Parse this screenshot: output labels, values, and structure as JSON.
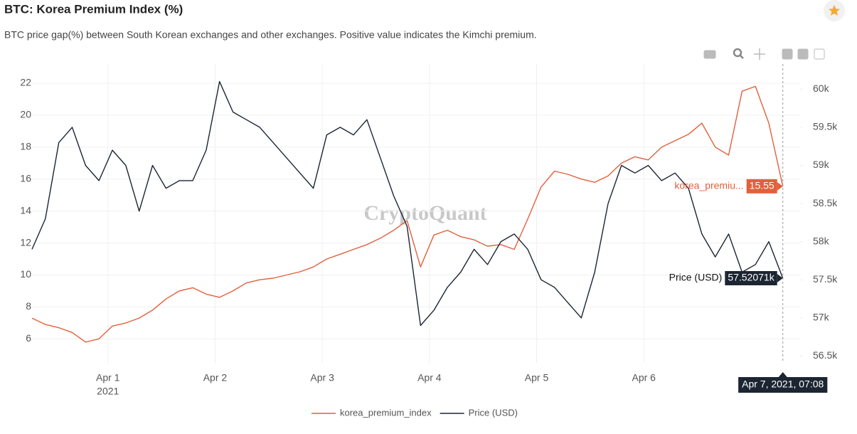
{
  "chart_data": {
    "type": "line",
    "title": "BTC: Korea Premium Index (%)",
    "subtitle": "BTC price gap(%) between South Korean exchanges and other exchanges. Positive value indicates the Kimchi premium.",
    "watermark": "CryptoQuant",
    "x": [
      "2021-03-31T07:00",
      "2021-03-31T10:00",
      "2021-03-31T13:00",
      "2021-03-31T16:00",
      "2021-03-31T19:00",
      "2021-03-31T22:00",
      "2021-04-01T01:00",
      "2021-04-01T04:00",
      "2021-04-01T07:00",
      "2021-04-01T10:00",
      "2021-04-01T13:00",
      "2021-04-01T16:00",
      "2021-04-01T19:00",
      "2021-04-01T22:00",
      "2021-04-02T01:00",
      "2021-04-02T04:00",
      "2021-04-02T07:00",
      "2021-04-02T10:00",
      "2021-04-02T13:00",
      "2021-04-02T16:00",
      "2021-04-02T19:00",
      "2021-04-02T22:00",
      "2021-04-03T01:00",
      "2021-04-03T04:00",
      "2021-04-03T07:00",
      "2021-04-03T10:00",
      "2021-04-03T13:00",
      "2021-04-03T16:00",
      "2021-04-03T19:00",
      "2021-04-03T22:00",
      "2021-04-04T01:00",
      "2021-04-04T04:00",
      "2021-04-04T07:00",
      "2021-04-04T10:00",
      "2021-04-04T13:00",
      "2021-04-04T16:00",
      "2021-04-04T19:00",
      "2021-04-04T22:00",
      "2021-04-05T01:00",
      "2021-04-05T04:00",
      "2021-04-05T07:00",
      "2021-04-05T10:00",
      "2021-04-05T13:00",
      "2021-04-05T16:00",
      "2021-04-05T19:00",
      "2021-04-05T22:00",
      "2021-04-06T01:00",
      "2021-04-06T04:00",
      "2021-04-06T07:00",
      "2021-04-06T10:00",
      "2021-04-06T13:00",
      "2021-04-06T16:00",
      "2021-04-06T19:00",
      "2021-04-06T22:00",
      "2021-04-07T01:00",
      "2021-04-07T04:00",
      "2021-04-07T07:08"
    ],
    "xlim": [
      "2021-03-31T07:00",
      "2021-04-07T11:00"
    ],
    "xticks": [
      {
        "value": "2021-04-01T00:00",
        "label": "Apr 1"
      },
      {
        "value": "2021-04-02T00:00",
        "label": "Apr 2"
      },
      {
        "value": "2021-04-03T00:00",
        "label": "Apr 3"
      },
      {
        "value": "2021-04-04T00:00",
        "label": "Apr 4"
      },
      {
        "value": "2021-04-05T00:00",
        "label": "Apr 5"
      },
      {
        "value": "2021-04-06T00:00",
        "label": "Apr 6"
      }
    ],
    "x_year_label": "2021",
    "ylim": [
      4.5,
      23.2
    ],
    "yticks": [
      6,
      8,
      10,
      12,
      14,
      16,
      18,
      20,
      22
    ],
    "y2lim": [
      56410,
      60330
    ],
    "y2ticks": [
      {
        "value": 56500,
        "label": "56.5k"
      },
      {
        "value": 57000,
        "label": "57k"
      },
      {
        "value": 57500,
        "label": "57.5k"
      },
      {
        "value": 58000,
        "label": "58k"
      },
      {
        "value": 58500,
        "label": "58.5k"
      },
      {
        "value": 59000,
        "label": "59k"
      },
      {
        "value": 59500,
        "label": "59.5k"
      },
      {
        "value": 60000,
        "label": "60k"
      }
    ],
    "grid": true,
    "legend": "bottom",
    "series": [
      {
        "name": "korea_premium_index",
        "color": "#e2603c",
        "values": [
          7.3,
          6.9,
          6.7,
          6.4,
          5.8,
          6.0,
          6.8,
          7.0,
          7.3,
          7.8,
          8.5,
          9.0,
          9.2,
          8.8,
          8.6,
          9.0,
          9.5,
          9.7,
          9.8,
          10.0,
          10.2,
          10.5,
          11.0,
          11.3,
          11.6,
          11.9,
          12.3,
          12.8,
          13.4,
          10.5,
          12.5,
          12.8,
          12.4,
          12.2,
          11.8,
          11.9,
          11.6,
          13.5,
          15.5,
          16.5,
          16.3,
          16.0,
          15.8,
          16.2,
          17.0,
          17.4,
          17.2,
          18.0,
          18.4,
          18.8,
          19.5,
          18.0,
          17.5,
          21.5,
          21.8,
          19.5,
          15.55
        ]
      },
      {
        "name": "Price (USD)",
        "color": "#1c2532",
        "axis": "y2",
        "values": [
          57900,
          58300,
          59300,
          59500,
          59000,
          58800,
          59200,
          59000,
          58400,
          59000,
          58700,
          58800,
          58800,
          59200,
          60100,
          59700,
          59600,
          59500,
          59300,
          59100,
          58900,
          58700,
          59400,
          59500,
          59400,
          59600,
          59100,
          58600,
          58200,
          56900,
          57100,
          57400,
          57600,
          57900,
          57700,
          58000,
          58100,
          57900,
          57500,
          57400,
          57200,
          57000,
          57600,
          58500,
          59000,
          58900,
          59000,
          58800,
          58900,
          58700,
          58100,
          57800,
          58100,
          57600,
          57700,
          58000,
          57520.71
        ],
        "value_labels": [
          null,
          null,
          null,
          null,
          null,
          null,
          null,
          null,
          null,
          null,
          null,
          null,
          null,
          null,
          null,
          null,
          null,
          null,
          null,
          null,
          null,
          null,
          null,
          null,
          null,
          null,
          null,
          null,
          null,
          null,
          null,
          null,
          null,
          null,
          null,
          null,
          null,
          null,
          null,
          null,
          null,
          null,
          null,
          null,
          null,
          null,
          null,
          null,
          null,
          null,
          null,
          null,
          null,
          null,
          null,
          null,
          "57.52071k"
        ]
      }
    ],
    "hover_series_labels": [
      "korea_premiu...",
      "Price (USD)"
    ],
    "hover_x_label": "Apr 7, 2021, 07:08"
  }
}
